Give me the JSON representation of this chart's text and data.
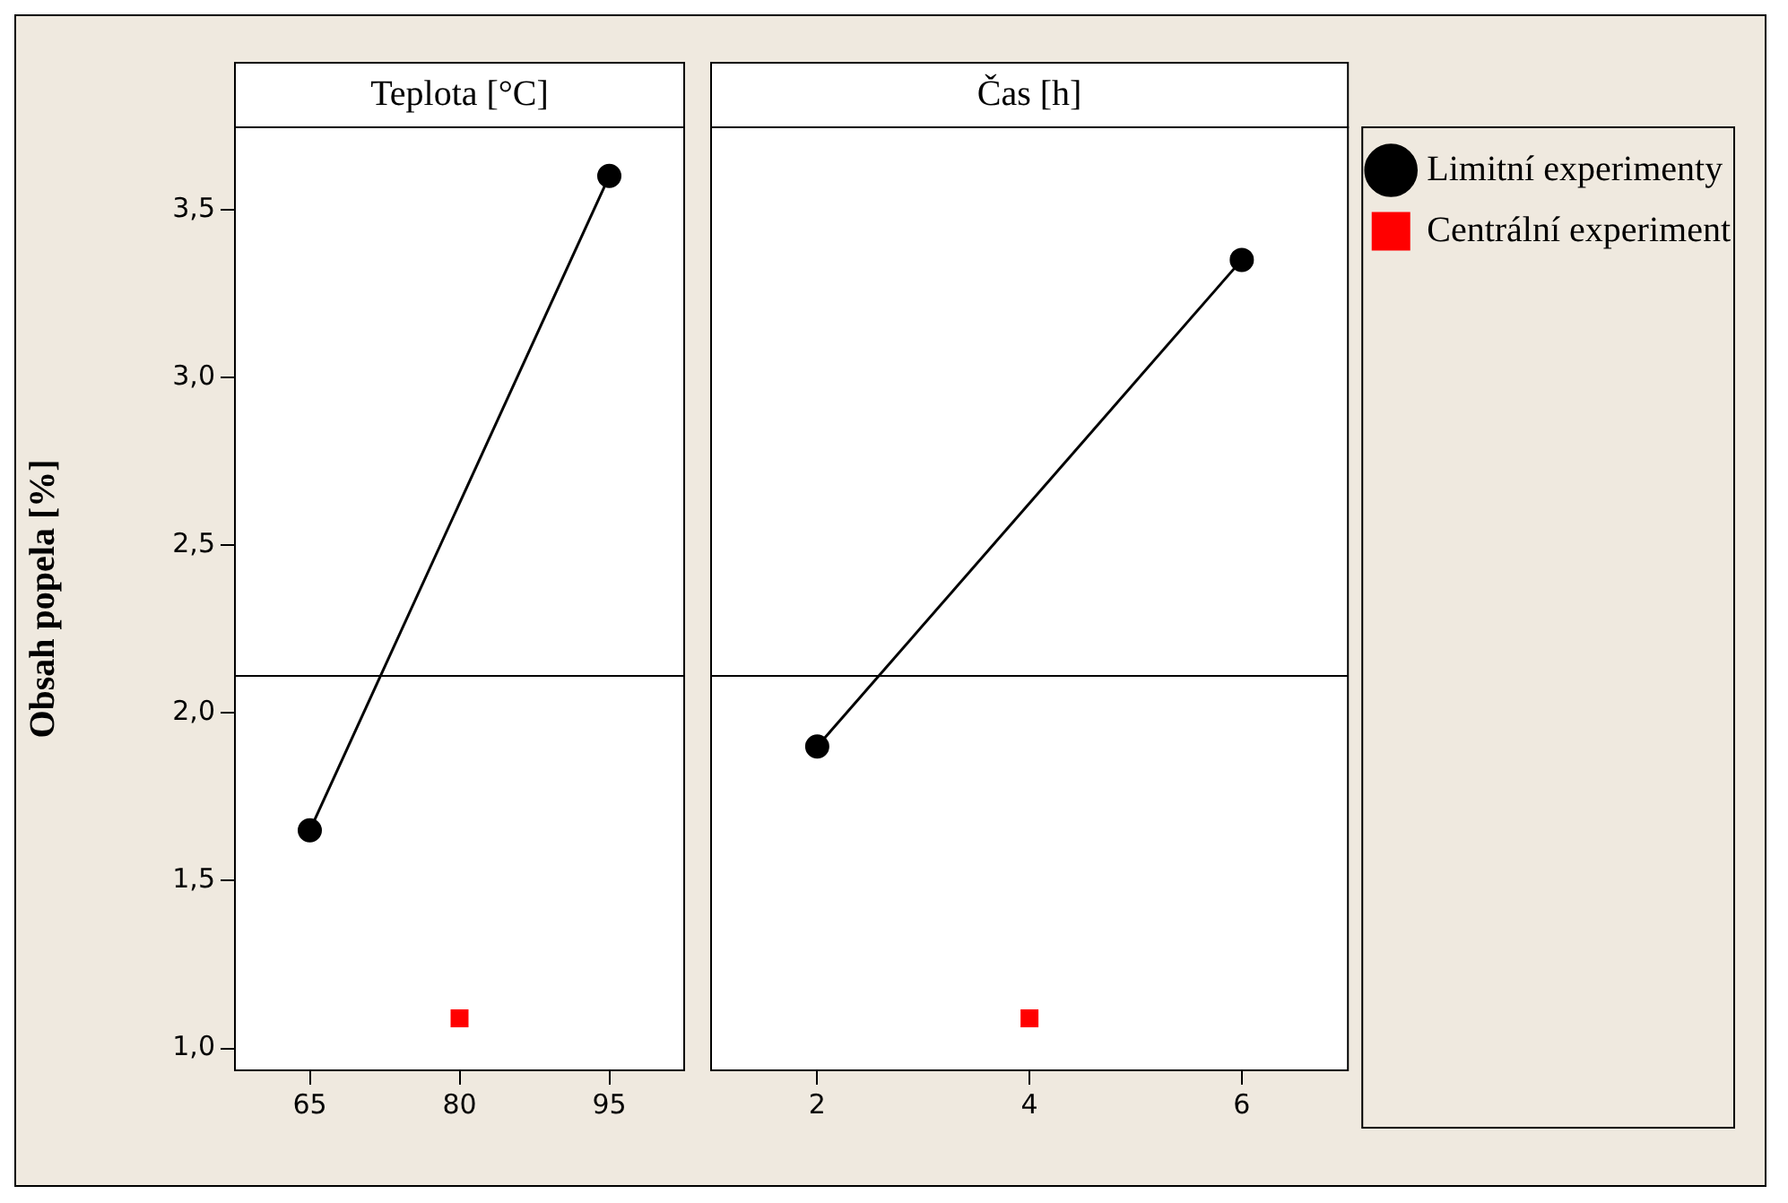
{
  "chart_data": [
    {
      "type": "line",
      "title": "Teplota [°C]",
      "ylabel": "Obsah popela [%]",
      "xlim": [
        57.5,
        102.5
      ],
      "xticks": [
        65,
        80,
        95
      ],
      "ylim": [
        0.935,
        3.745
      ],
      "yticks": [
        {
          "value": 1,
          "label": "1,0"
        },
        {
          "value": 1.5,
          "label": "1,5"
        },
        {
          "value": 2,
          "label": "2,0"
        },
        {
          "value": 2.5,
          "label": "2,5"
        },
        {
          "value": 3,
          "label": "3,0"
        },
        {
          "value": 3.5,
          "label": "3,5"
        }
      ],
      "grid": false,
      "legend": false,
      "ref_lines": [
        {
          "axis": "y",
          "value": 2.11,
          "color": "#000000"
        }
      ],
      "series": [
        {
          "type": "line",
          "color": "#000000",
          "marker": "circle",
          "x": [
            65,
            95
          ],
          "values": [
            1.65,
            3.6
          ]
        },
        {
          "type": "scatter",
          "color": "#ff0000",
          "marker": "square",
          "x": [
            80
          ],
          "values": [
            1.09
          ]
        }
      ]
    },
    {
      "type": "line",
      "title": "Čas [h]",
      "xlim": [
        1,
        7
      ],
      "xticks": [
        2,
        4,
        6
      ],
      "ylim": [
        0.935,
        3.745
      ],
      "grid": false,
      "legend": "right",
      "tick_labels": "x",
      "ref_lines": [
        {
          "axis": "y",
          "value": 2.11,
          "color": "#000000"
        }
      ],
      "series": [
        {
          "type": "line",
          "name": "Limitní experimenty",
          "color": "#000000",
          "marker": "circle",
          "x": [
            2,
            6
          ],
          "values": [
            1.9,
            3.35
          ]
        },
        {
          "type": "scatter",
          "name": "Centrální experiment",
          "color": "#ff0000",
          "marker": "square",
          "x": [
            4
          ],
          "values": [
            1.09
          ]
        }
      ]
    }
  ]
}
